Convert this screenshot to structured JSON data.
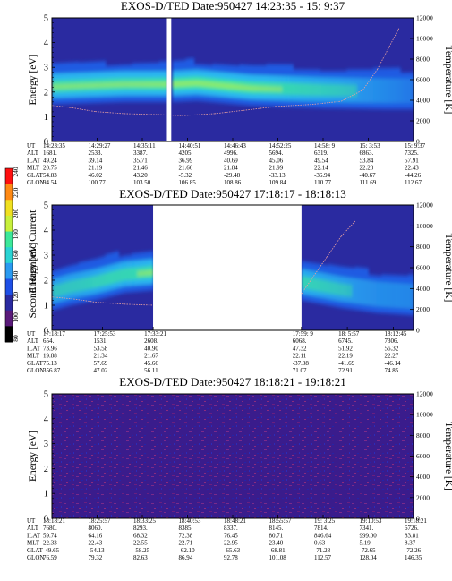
{
  "colorbar": {
    "label": "Second Harmonic Current",
    "ticks": [
      "80",
      "100",
      "120",
      "140",
      "160",
      "180",
      "200",
      "220",
      "240"
    ],
    "colors": [
      "#000000",
      "#5a1a7a",
      "#2a2aa0",
      "#1e4fe6",
      "#2a9af0",
      "#2ad4d4",
      "#3ce89a",
      "#c8f03c",
      "#f0e020",
      "#ff8a14",
      "#ff1010"
    ]
  },
  "chart_data": [
    {
      "type": "heatmap",
      "title": "EXOS-D/TED   Date:950427  14:23:35 - 15: 9:37",
      "ylabel": "Energy [eV]",
      "ylabel_right": "Temperature [K]",
      "ylim": [
        0,
        5
      ],
      "ylim_right": [
        0,
        12000
      ],
      "y_ticks": [
        "0",
        "1",
        "2",
        "3",
        "4",
        "5"
      ],
      "y_ticks_right": [
        "0",
        "2000",
        "4000",
        "6000",
        "8000",
        "10000",
        "12000"
      ],
      "data_gaps": [
        [
          0.318,
          0.33
        ]
      ],
      "band": {
        "base": [
          [
            0,
            2.2
          ],
          [
            0.2,
            2.3
          ],
          [
            0.33,
            2.3
          ],
          [
            0.4,
            2.35
          ],
          [
            0.55,
            2.15
          ],
          [
            0.75,
            2.05
          ],
          [
            0.92,
            2.0
          ],
          [
            1,
            2.0
          ]
        ],
        "intensity": [
          [
            0,
            0.75
          ],
          [
            0.3,
            0.85
          ],
          [
            0.34,
            0.95
          ],
          [
            0.55,
            0.85
          ],
          [
            0.8,
            0.55
          ],
          [
            0.92,
            0.3
          ],
          [
            1,
            0.1
          ]
        ]
      },
      "temperature_trace": [
        [
          0,
          3500
        ],
        [
          0.05,
          3300
        ],
        [
          0.12,
          2900
        ],
        [
          0.2,
          2700
        ],
        [
          0.3,
          2600
        ],
        [
          0.36,
          2500
        ],
        [
          0.45,
          2700
        ],
        [
          0.55,
          3100
        ],
        [
          0.62,
          3400
        ],
        [
          0.72,
          3600
        ],
        [
          0.8,
          3900
        ],
        [
          0.86,
          5000
        ],
        [
          0.9,
          7000
        ],
        [
          0.93,
          9000
        ],
        [
          0.96,
          11000
        ]
      ],
      "table": {
        "row_labels": [
          "UT",
          "ALT",
          "ILAT",
          "MLT",
          "GLAT",
          "GLON"
        ],
        "columns": [
          [
            "14:23:35",
            "1681.",
            "49.24",
            "20.75",
            "54.83",
            "94.54"
          ],
          [
            "14:29:27",
            "2533.",
            "39.14",
            "21.19",
            "46.02",
            "100.77"
          ],
          [
            "14:35:11",
            "3387.",
            "35.71",
            "21.46",
            "43.20",
            "103.50"
          ],
          [
            "14:40:51",
            "4205.",
            "36.99",
            "21.66",
            "-5.32",
            "106.85"
          ],
          [
            "14:46:43",
            "4996.",
            "40.69",
            "21.84",
            "-29.48",
            "108.86"
          ],
          [
            "14:52:25",
            "5694.",
            "45.06",
            "21.99",
            "-33.13",
            "109.84"
          ],
          [
            "14:58: 9",
            "6319.",
            "49.54",
            "22.14",
            "-36.94",
            "110.77"
          ],
          [
            "15: 3:53",
            "6863.",
            "53.84",
            "22.28",
            "-40.67",
            "111.69"
          ],
          [
            "15: 9:37",
            "7325.",
            "57.91",
            "22.43",
            "-44.26",
            "112.67"
          ]
        ]
      }
    },
    {
      "type": "heatmap",
      "title": "EXOS-D/TED   Date:950427  17:18:17 - 18:18:13",
      "ylabel": "Energy [eV]",
      "ylabel_right": "Temperature [K]",
      "ylim": [
        0,
        5
      ],
      "ylim_right": [
        0,
        12000
      ],
      "y_ticks": [
        "0",
        "1",
        "2",
        "3",
        "4",
        "5"
      ],
      "y_ticks_right": [
        "0",
        "2000",
        "4000",
        "6000",
        "8000",
        "10000",
        "12000"
      ],
      "data_segments": [
        [
          0,
          0.28
        ],
        [
          0.69,
          1.0
        ]
      ],
      "band": {
        "base": [
          [
            0,
            1.5
          ],
          [
            0.05,
            1.7
          ],
          [
            0.12,
            1.9
          ],
          [
            0.2,
            2.2
          ],
          [
            0.28,
            2.3
          ],
          [
            0.69,
            1.9
          ],
          [
            0.8,
            1.6
          ],
          [
            0.9,
            1.4
          ],
          [
            1,
            1.3
          ]
        ],
        "intensity": [
          [
            0,
            0.5
          ],
          [
            0.15,
            0.65
          ],
          [
            0.28,
            0.8
          ],
          [
            0.69,
            0.7
          ],
          [
            0.8,
            0.5
          ],
          [
            0.9,
            0.35
          ],
          [
            1,
            0.25
          ]
        ]
      },
      "temperature_trace": [
        [
          0,
          3200
        ],
        [
          0.06,
          3000
        ],
        [
          0.12,
          2700
        ],
        [
          0.2,
          2500
        ],
        [
          0.28,
          2400
        ],
        [
          0.69,
          3500
        ],
        [
          0.72,
          5000
        ],
        [
          0.76,
          7000
        ],
        [
          0.8,
          9000
        ],
        [
          0.84,
          10500
        ]
      ],
      "table": {
        "row_labels": [
          "UT",
          "ALT",
          "ILAT",
          "MLT",
          "GLAT",
          "GLON"
        ],
        "columns": [
          [
            "17:18:17",
            "654.",
            "73.96",
            "19.88",
            "75.13",
            "356.87"
          ],
          [
            "17:25:53",
            "1531.",
            "53.58",
            "21.34",
            "57.69",
            "47.02"
          ],
          [
            "17:33:21",
            "2608.",
            "40.90",
            "21.67",
            "45.66",
            "56.11"
          ],
          [
            "17:59: 9",
            "6068.",
            "47.32",
            "22.11",
            "-37.08",
            "71.07"
          ],
          [
            "18: 5:57",
            "6745.",
            "51.92",
            "22.19",
            "-41.69",
            "72.91"
          ],
          [
            "18:12:45",
            "7306.",
            "56.32",
            "22.27",
            "-46.14",
            "74.85"
          ]
        ]
      }
    },
    {
      "type": "heatmap",
      "title": "EXOS-D/TED   Date:950427  18:18:21 - 19:18:21",
      "ylabel": "Energy [eV]",
      "ylabel_right": "Temperature [K]",
      "ylim": [
        0,
        5
      ],
      "ylim_right": [
        0,
        12000
      ],
      "y_ticks": [
        "0",
        "1",
        "2",
        "3",
        "4",
        "5"
      ],
      "y_ticks_right": [
        "0",
        "2000",
        "4000",
        "6000",
        "8000",
        "10000",
        "12000"
      ],
      "background_noise": true,
      "table": {
        "row_labels": [
          "UT",
          "ALT",
          "ILAT",
          "MLT",
          "GLAT",
          "GLON"
        ],
        "columns": [
          [
            "18:18:21",
            "7680.",
            "59.74",
            "22.33",
            "-49.65",
            "76.59"
          ],
          [
            "18:25:57",
            "8060.",
            "64.16",
            "22.43",
            "-54.13",
            "79.32"
          ],
          [
            "18:33:25",
            "8293.",
            "68.32",
            "22.55",
            "-58.25",
            "82.63"
          ],
          [
            "18:40:53",
            "8385.",
            "72.38",
            "22.71",
            "-62.10",
            "86.94"
          ],
          [
            "18:48:21",
            "8337.",
            "76.45",
            "22.95",
            "-65.63",
            "92.78"
          ],
          [
            "18:55:57",
            "8145.",
            "80.71",
            "23.40",
            "-68.81",
            "101.08"
          ],
          [
            "19: 3:25",
            "7814.",
            "846.64",
            "0.63",
            "-71.28",
            "112.57"
          ],
          [
            "19:10:53",
            "7341.",
            "999.00",
            "5.19",
            "-72.65",
            "128.04"
          ],
          [
            "19:18:21",
            "6726.",
            "83.81",
            "8.37",
            "-72.26",
            "146.35"
          ]
        ]
      }
    }
  ]
}
